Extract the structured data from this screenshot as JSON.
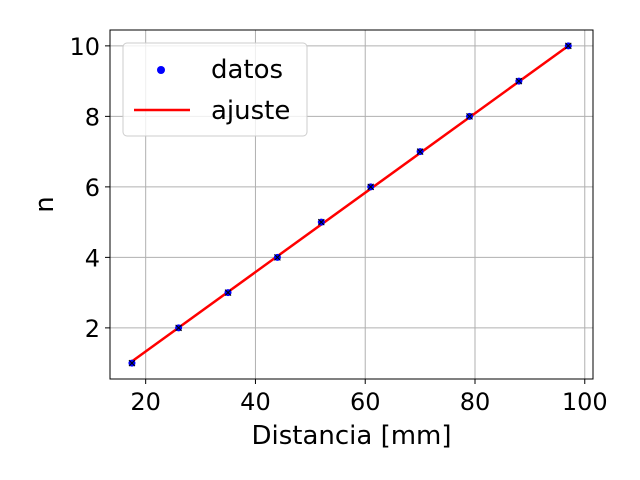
{
  "chart_data": {
    "type": "scatter",
    "xlabel": "Distancia [mm]",
    "ylabel": "n",
    "xlim": [
      13.5,
      101.5
    ],
    "ylim": [
      0.55,
      10.45
    ],
    "xticks": [
      20,
      40,
      60,
      80,
      100
    ],
    "yticks": [
      2,
      4,
      6,
      8,
      10
    ],
    "xtick_labels": [
      "20",
      "40",
      "60",
      "80",
      "100"
    ],
    "ytick_labels": [
      "2",
      "4",
      "6",
      "8",
      "10"
    ],
    "grid": true,
    "legend_position": "top-left",
    "series": [
      {
        "name": "datos",
        "kind": "scatter",
        "color": "#0000ff",
        "x": [
          17.5,
          26,
          35,
          44,
          52,
          61,
          70,
          79,
          88,
          97
        ],
        "y": [
          1,
          2,
          3,
          4,
          5,
          6,
          7,
          8,
          9,
          10
        ]
      },
      {
        "name": "ajuste",
        "kind": "line",
        "color": "#ff0000",
        "x": [
          17.5,
          97
        ],
        "y": [
          1.05,
          10.0
        ]
      }
    ]
  }
}
